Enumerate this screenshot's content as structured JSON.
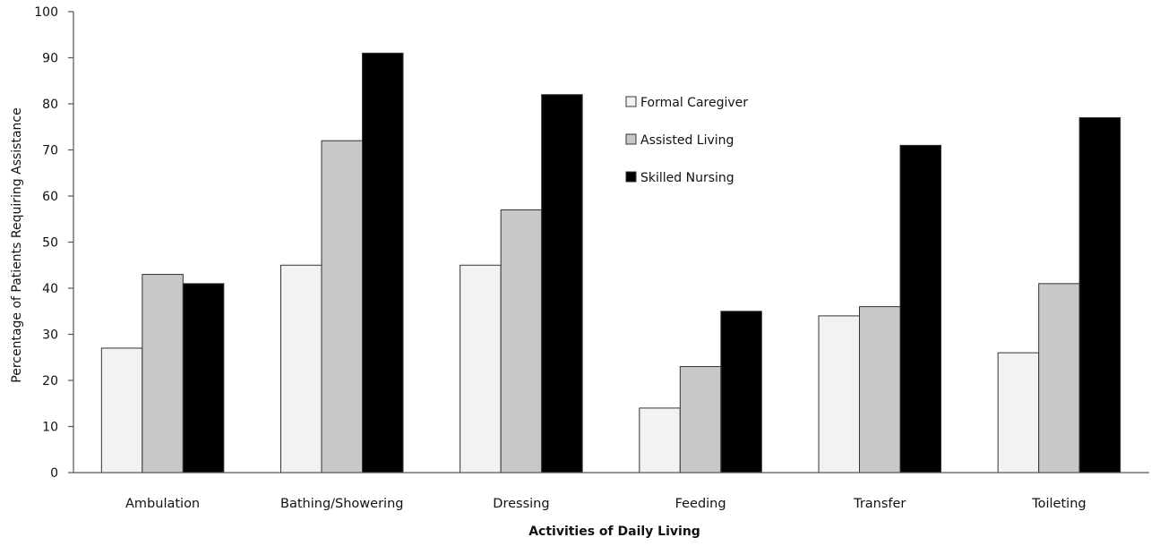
{
  "chart_data": {
    "type": "bar",
    "title": "",
    "xlabel": "Activities of Daily Living",
    "ylabel": "Percentage of  Patients Requiring Assistance",
    "ylim": [
      0,
      100
    ],
    "yticks": [
      0,
      10,
      20,
      30,
      40,
      50,
      60,
      70,
      80,
      90,
      100
    ],
    "categories": [
      "Ambulation",
      "Bathing/Showering",
      "Dressing",
      "Feeding",
      "Transfer",
      "Toileting"
    ],
    "series": [
      {
        "name": "Formal Caregiver",
        "color": "#f2f2f2",
        "values": [
          27,
          45,
          45,
          14,
          34,
          26
        ]
      },
      {
        "name": "Assisted Living",
        "color": "#c8c8c8",
        "values": [
          43,
          72,
          57,
          23,
          36,
          41
        ]
      },
      {
        "name": "Skilled Nursing",
        "color": "#000000",
        "values": [
          41,
          91,
          82,
          35,
          71,
          77
        ]
      }
    ],
    "grid": false,
    "legend_position": "top-center"
  }
}
